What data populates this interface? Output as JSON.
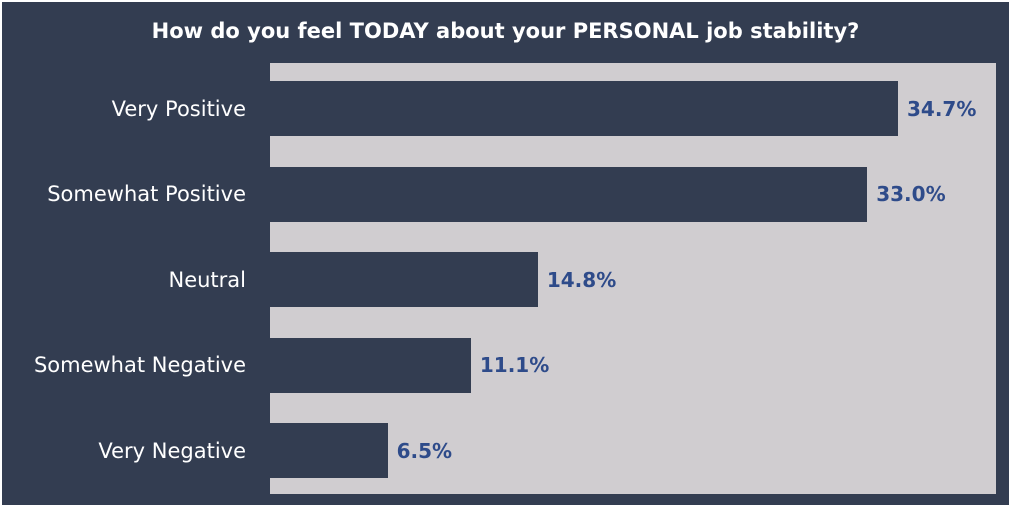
{
  "colors": {
    "background": "#333d51",
    "plot_background": "#d0cdd0",
    "bar": "#333d51",
    "value_label": "#2e4b8a",
    "title_text": "#ffffff",
    "category_text": "#ffffff"
  },
  "chart_data": {
    "type": "bar",
    "orientation": "horizontal",
    "title": "How do you feel TODAY about your PERSONAL job stability?",
    "categories": [
      "Very Positive",
      "Somewhat Positive",
      "Neutral",
      "Somewhat Negative",
      "Very Negative"
    ],
    "values": [
      34.7,
      33.0,
      14.8,
      11.1,
      6.5
    ],
    "data_labels": [
      "34.7%",
      "33.0%",
      "14.8%",
      "11.1%",
      "6.5%"
    ],
    "xlim": [
      0,
      40
    ],
    "grid": false,
    "legend": "none",
    "xlabel": "",
    "ylabel": ""
  }
}
